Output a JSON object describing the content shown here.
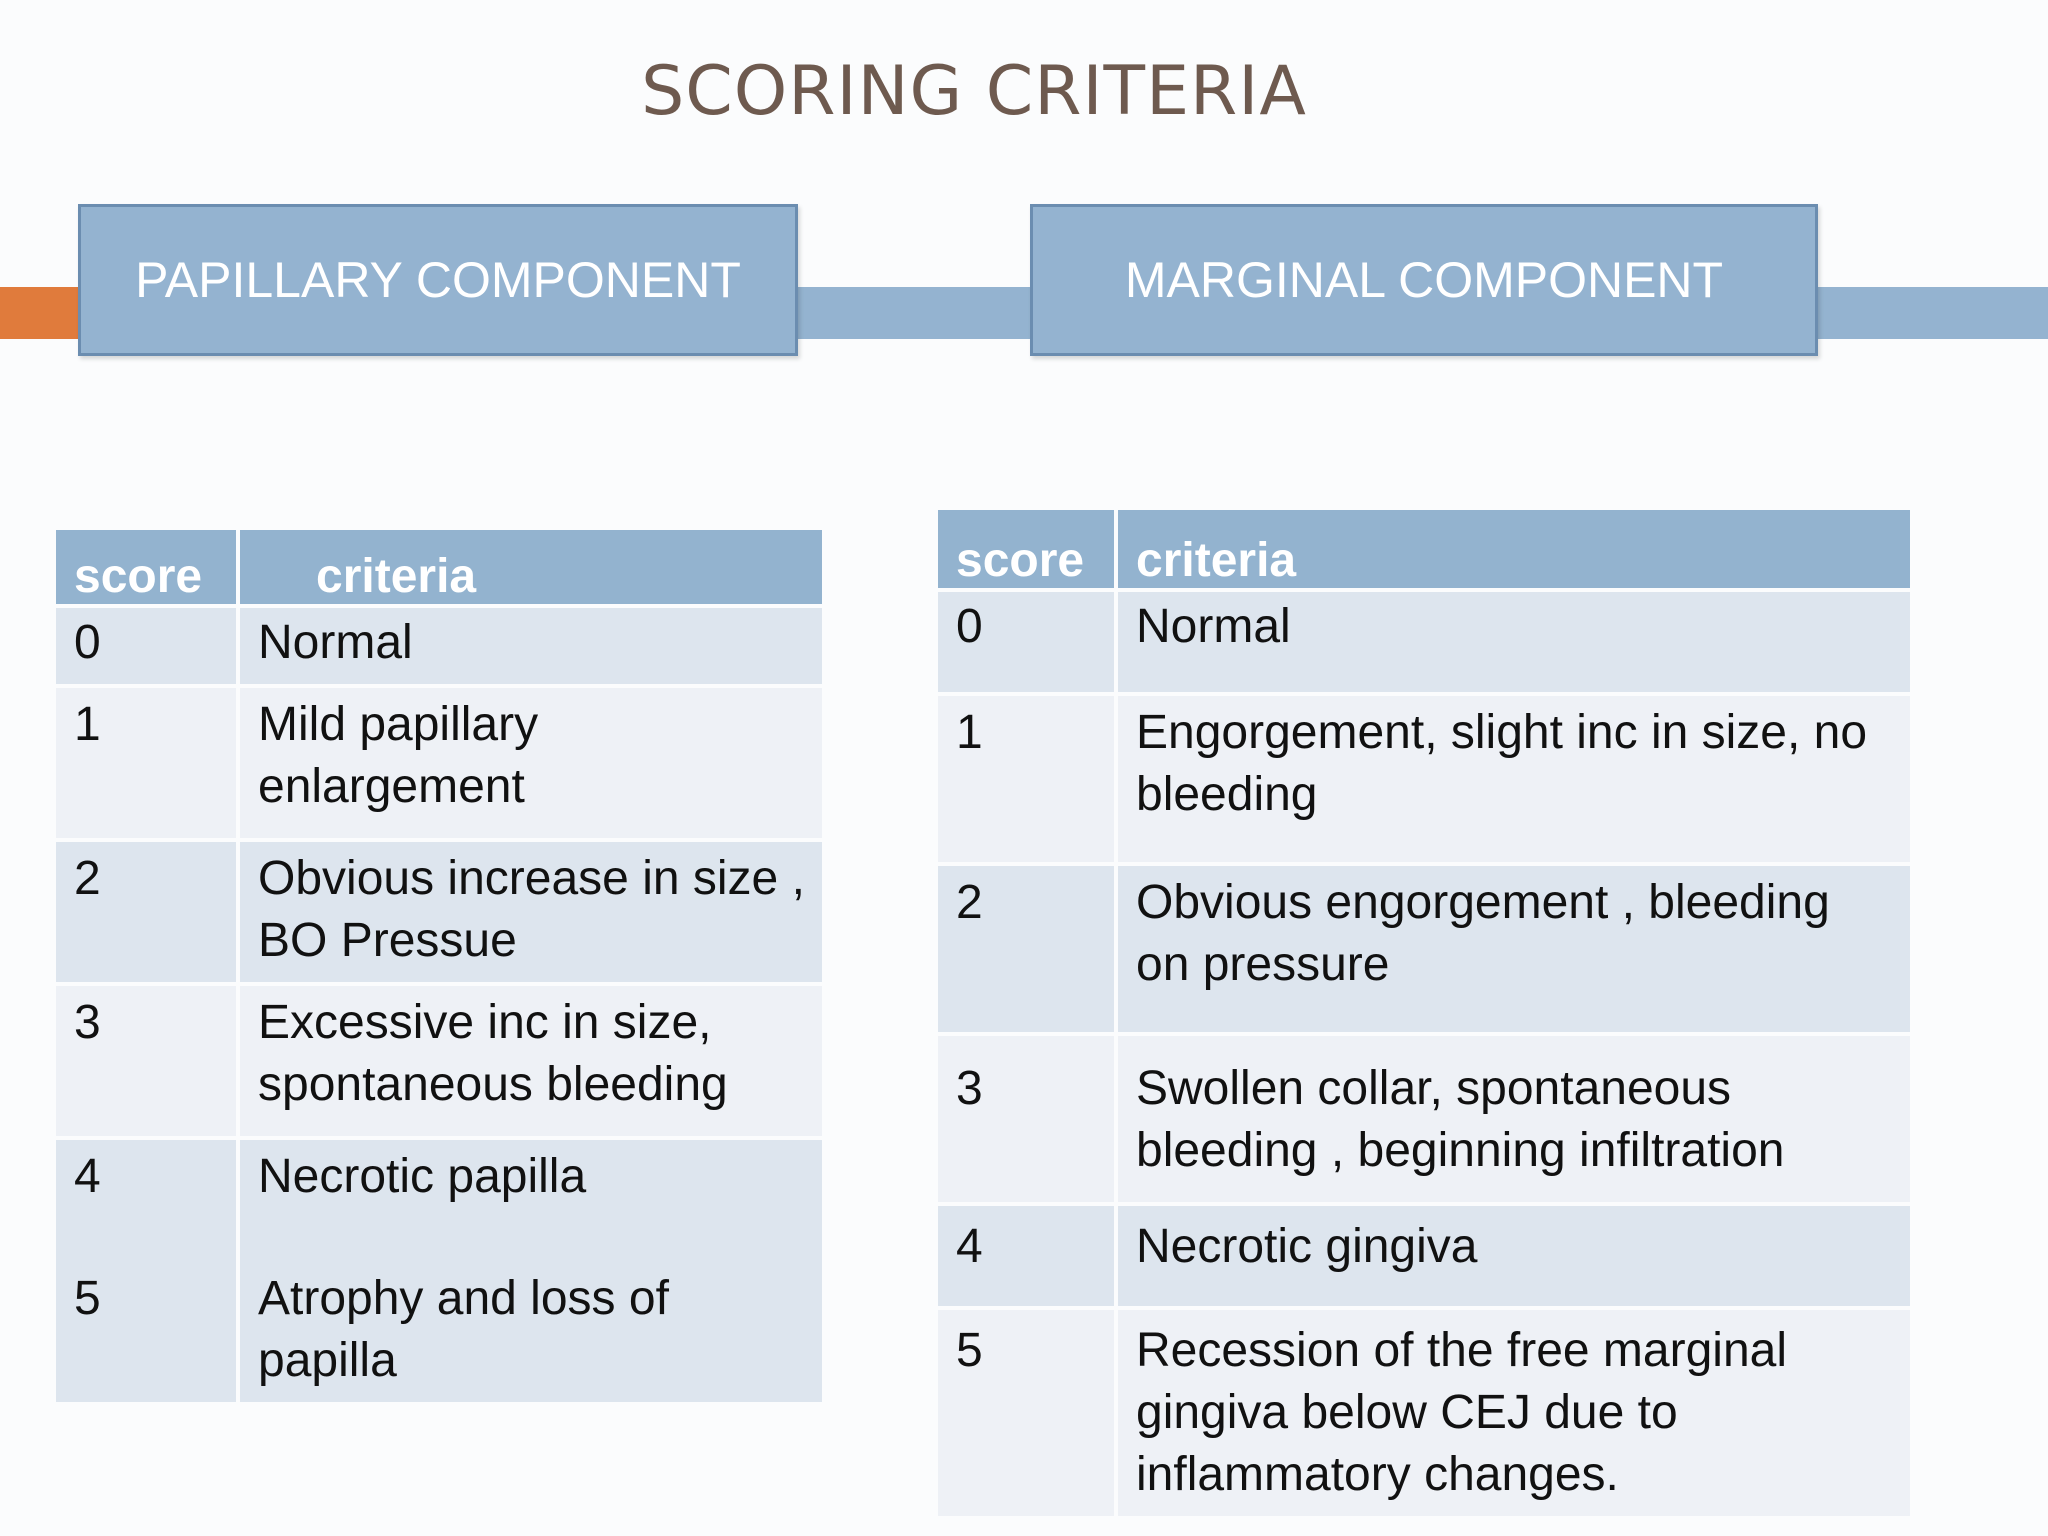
{
  "title": "SCORING CRITERIA",
  "components": {
    "papillary": "PAPILLARY COMPONENT",
    "marginal": "MARGINAL COMPONENT"
  },
  "colors": {
    "title": "#6e5a4f",
    "accent": "#e07b3c",
    "header_blue": "#94b3d0",
    "row_dark": "#dde5ee",
    "row_light": "#eef1f6"
  },
  "papillary_table": {
    "headers": [
      "score",
      "criteria"
    ],
    "rows": [
      {
        "score": "0",
        "criteria": "Normal"
      },
      {
        "score": "1",
        "criteria": "Mild papillary enlargement"
      },
      {
        "score": "2",
        "criteria": "Obvious increase in size , BO Pressue"
      },
      {
        "score": "3",
        "criteria": "Excessive inc in size, spontaneous bleeding"
      },
      {
        "score_a": "4",
        "criteria_a": "Necrotic papilla",
        "score_b": "5",
        "criteria_b": "Atrophy and loss of papilla"
      }
    ]
  },
  "marginal_table": {
    "headers": [
      "score",
      "criteria"
    ],
    "rows": [
      {
        "score": "0",
        "criteria": "Normal"
      },
      {
        "score": "1",
        "criteria": "Engorgement, slight inc in size, no bleeding"
      },
      {
        "score": "2",
        "criteria": "Obvious engorgement , bleeding on pressure"
      },
      {
        "score": "3",
        "criteria": "Swollen collar, spontaneous bleeding , beginning infiltration"
      },
      {
        "score": "4",
        "criteria": "Necrotic gingiva"
      },
      {
        "score": "5",
        "criteria": "Recession of the free marginal gingiva below CEJ due to inflammatory changes."
      }
    ]
  }
}
